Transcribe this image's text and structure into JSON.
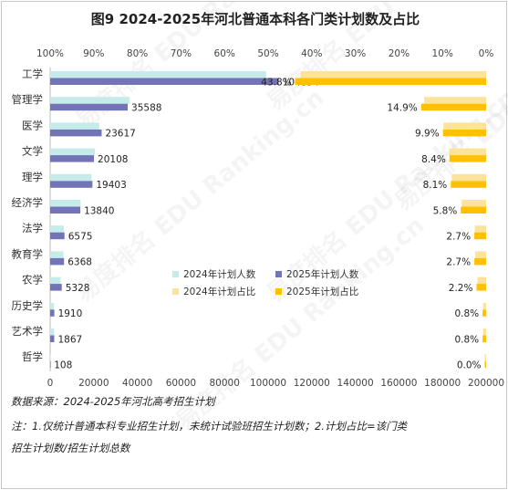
{
  "chart_data": {
    "type": "bar",
    "title": "图9  2024-2025年河北普通本科各门类计划数及占比",
    "categories": [
      "工学",
      "管理学",
      "医学",
      "文学",
      "理学",
      "经济学",
      "法学",
      "教育学",
      "农学",
      "历史学",
      "艺术学",
      "哲学"
    ],
    "series": [
      {
        "name": "2024年计划人数",
        "axis": "bottom",
        "color": "#c5ebeb",
        "values": [
          99000,
          36500,
          22500,
          20500,
          19000,
          14000,
          6300,
          6100,
          4800,
          1700,
          1800,
          120
        ]
      },
      {
        "name": "2025年计划人数",
        "axis": "bottom",
        "color": "#7373b8",
        "values": [
          104894,
          35588,
          23617,
          20108,
          19403,
          13840,
          6575,
          6368,
          5328,
          1910,
          1867,
          108
        ]
      },
      {
        "name": "2024年计划占比",
        "axis": "top",
        "color": "#fde39a",
        "values": [
          42.5,
          14.2,
          9.8,
          8.5,
          7.9,
          5.6,
          2.6,
          2.5,
          2.0,
          0.7,
          0.7,
          0.1
        ]
      },
      {
        "name": "2025年计划占比",
        "axis": "top",
        "color": "#ffc000",
        "values": [
          43.8,
          14.9,
          9.9,
          8.4,
          8.1,
          5.8,
          2.7,
          2.7,
          2.2,
          0.8,
          0.8,
          0.0
        ]
      }
    ],
    "count_labels": [
      "104894",
      "35588",
      "23617",
      "20108",
      "19403",
      "13840",
      "6575",
      "6368",
      "5328",
      "1910",
      "1867",
      "108"
    ],
    "pct_labels": [
      "43.8%",
      "14.9%",
      "9.9%",
      "8.4%",
      "8.1%",
      "5.8%",
      "2.7%",
      "2.7%",
      "2.2%",
      "0.8%",
      "0.8%",
      "0.0%"
    ],
    "x_bottom_ticks": [
      "0",
      "20000",
      "40000",
      "60000",
      "80000",
      "100000",
      "120000",
      "140000",
      "160000",
      "180000",
      "200000"
    ],
    "x_bottom_lim": [
      0,
      200000
    ],
    "x_top_ticks": [
      "100%",
      "90%",
      "80%",
      "70%",
      "60%",
      "50%",
      "40%",
      "30%",
      "20%",
      "10%",
      "0%"
    ],
    "x_top_lim": [
      0,
      100
    ],
    "x_top_reversed": true,
    "legend": [
      "2024年计划人数",
      "2025年计划人数",
      "2024年计划占比",
      "2025年计划占比"
    ],
    "legend_position": "center-right",
    "grid": false
  },
  "notes": {
    "source": "数据来源：2024-2025年河北高考招生计划",
    "line1": "注：1.仅统计普通本科专业招生计划，未统计试验班招生计划数；2.计划占比=该门类",
    "line2": "招生计划数/招生计划总数"
  },
  "watermark": "易度排名 EDU Ranking.cn"
}
